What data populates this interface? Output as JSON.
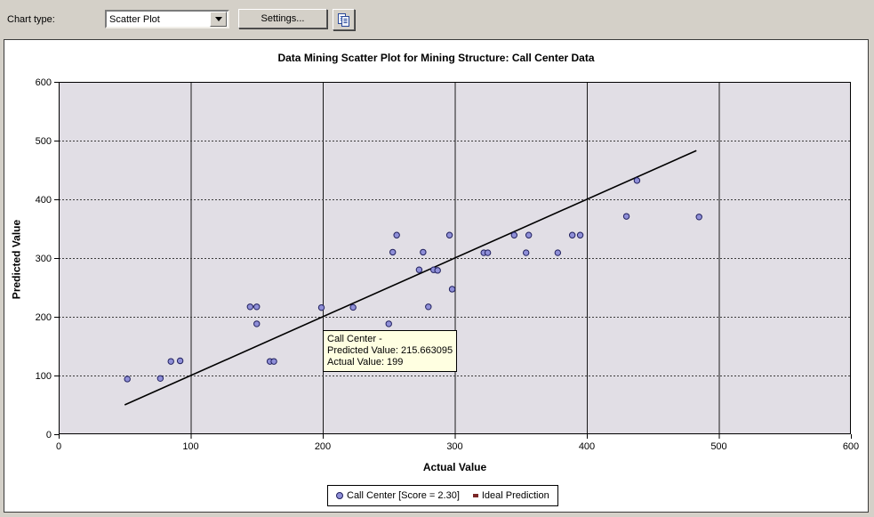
{
  "toolbar": {
    "chart_type_label": "Chart type:",
    "chart_type_value": "Scatter Plot",
    "settings_button": "Settings...",
    "copy_button_icon": "copy-icon",
    "dropdown_arrow_icon": "chevron-down-icon"
  },
  "chart_data": {
    "type": "scatter",
    "title": "Data Mining Scatter Plot for Mining Structure: Call Center Data",
    "xlabel": "Actual Value",
    "ylabel": "Predicted Value",
    "xlim": [
      0,
      600
    ],
    "ylim": [
      0,
      600
    ],
    "x_ticks": [
      0,
      100,
      200,
      300,
      400,
      500,
      600
    ],
    "y_ticks": [
      0,
      100,
      200,
      300,
      400,
      500,
      600
    ],
    "grid": {
      "vertical": "solid",
      "horizontal": "dashed"
    },
    "legend_position": "bottom-center",
    "series": [
      {
        "name": "Call Center [Score = 2.30]",
        "marker": "circle",
        "points": [
          [
            52,
            94
          ],
          [
            77,
            95
          ],
          [
            85,
            124
          ],
          [
            92,
            125
          ],
          [
            145,
            217
          ],
          [
            150,
            217
          ],
          [
            150,
            188
          ],
          [
            160,
            124
          ],
          [
            163,
            124
          ],
          [
            199,
            215.663095
          ],
          [
            223,
            216
          ],
          [
            250,
            188
          ],
          [
            253,
            310
          ],
          [
            256,
            339
          ],
          [
            273,
            280
          ],
          [
            276,
            310
          ],
          [
            280,
            217
          ],
          [
            284,
            280
          ],
          [
            287,
            279
          ],
          [
            296,
            339
          ],
          [
            298,
            247
          ],
          [
            322,
            309
          ],
          [
            325,
            309
          ],
          [
            345,
            339
          ],
          [
            354,
            309
          ],
          [
            356,
            339
          ],
          [
            378,
            309
          ],
          [
            389,
            339
          ],
          [
            395,
            339
          ],
          [
            430,
            371
          ],
          [
            438,
            432
          ],
          [
            485,
            370
          ]
        ]
      },
      {
        "name": "Ideal Prediction",
        "marker": "square",
        "line": [
          [
            50,
            50
          ],
          [
            483,
            483
          ]
        ]
      }
    ],
    "colors": {
      "plot_bg": "#e1dee5",
      "marker_fill": "#8f8fd8",
      "marker_stroke": "#20205e",
      "ideal_line": "#000000",
      "legend_square": "#7a2626",
      "grid_solid": "#1a1a1a",
      "grid_dashed": "#3c3c3c"
    }
  },
  "tooltip": {
    "bg": "#ffffe1",
    "lines": [
      "Call Center -",
      "Predicted Value: 215.663095",
      "Actual Value: 199"
    ]
  },
  "legend": {
    "items": [
      {
        "label": "Call Center [Score = 2.30]",
        "marker": "circle"
      },
      {
        "label": "Ideal Prediction",
        "marker": "square"
      }
    ]
  }
}
